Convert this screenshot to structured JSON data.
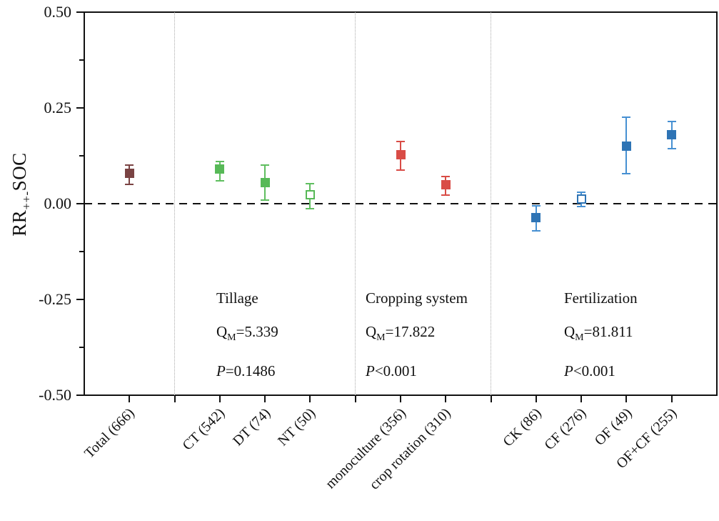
{
  "figure": {
    "y_axis": {
      "label_main": "RR",
      "label_sub": "++-",
      "label_rest": "SOC",
      "major_ticks": [
        {
          "value": 0.5,
          "label": "0.50"
        },
        {
          "value": 0.25,
          "label": "0.25"
        },
        {
          "value": 0.0,
          "label": "0.00"
        },
        {
          "value": -0.25,
          "label": "-0.25"
        },
        {
          "value": -0.5,
          "label": "-0.50"
        }
      ],
      "minor_ticks": [
        0.375,
        0.125,
        -0.125,
        -0.375
      ]
    }
  },
  "chart_data": {
    "type": "scatter",
    "title": "",
    "ylabel": "RR++-SOC",
    "xlabel": "",
    "ylim": [
      -0.5,
      0.5
    ],
    "grid": false,
    "zero_line": 0.0,
    "slot_count": 14,
    "separator_slots": [
      2,
      6,
      9
    ],
    "tick_slots": [
      1,
      2,
      3,
      4,
      5,
      6,
      7,
      8,
      9,
      10,
      11,
      12,
      13
    ],
    "points": [
      {
        "label": "Total (666)",
        "n": 666,
        "slot": 1,
        "value": 0.08,
        "ci_low": 0.05,
        "ci_high": 0.1,
        "style": "filled",
        "color": "#7a4343",
        "bar_color": "#7a4343"
      },
      {
        "label": "CT (542)",
        "n": 542,
        "slot": 3,
        "value": 0.09,
        "ci_low": 0.06,
        "ci_high": 0.11,
        "style": "filled",
        "color": "#57b957",
        "bar_color": "#5fbe5f"
      },
      {
        "label": "DT (74)",
        "n": 74,
        "slot": 4,
        "value": 0.055,
        "ci_low": 0.01,
        "ci_high": 0.1,
        "style": "filled",
        "color": "#57b957",
        "bar_color": "#5fbe5f"
      },
      {
        "label": "NT (50)",
        "n": 50,
        "slot": 5,
        "value": 0.024,
        "ci_low": -0.013,
        "ci_high": 0.052,
        "style": "open",
        "color": "#57b957",
        "bar_color": "#5fbe5f"
      },
      {
        "label": "monoculture (356)",
        "n": 356,
        "slot": 7,
        "value": 0.127,
        "ci_low": 0.088,
        "ci_high": 0.162,
        "style": "filled",
        "color": "#d94c46",
        "bar_color": "#d94c46"
      },
      {
        "label": "crop rotation (310)",
        "n": 310,
        "slot": 8,
        "value": 0.05,
        "ci_low": 0.022,
        "ci_high": 0.071,
        "style": "filled",
        "color": "#d94c46",
        "bar_color": "#d94c46"
      },
      {
        "label": "CK (86)",
        "n": 86,
        "slot": 10,
        "value": -0.037,
        "ci_low": -0.071,
        "ci_high": -0.005,
        "style": "filled",
        "color": "#2e74b5",
        "bar_color": "#4690d2"
      },
      {
        "label": "CF (276)",
        "n": 276,
        "slot": 11,
        "value": 0.013,
        "ci_low": -0.008,
        "ci_high": 0.03,
        "style": "open",
        "color": "#2e74b5",
        "bar_color": "#4690d2"
      },
      {
        "label": "OF (49)",
        "n": 49,
        "slot": 12,
        "value": 0.15,
        "ci_low": 0.078,
        "ci_high": 0.225,
        "style": "filled",
        "color": "#2e74b5",
        "bar_color": "#4690d2"
      },
      {
        "label": "OF+CF (255)",
        "n": 255,
        "slot": 13,
        "value": 0.18,
        "ci_low": 0.144,
        "ci_high": 0.215,
        "style": "filled",
        "color": "#2e74b5",
        "bar_color": "#4690d2"
      }
    ],
    "groups": [
      {
        "name": "Tillage",
        "qm_symbol": "Q",
        "qm_sub": "M",
        "qm_value": "=5.339",
        "p_symbol": "P",
        "p_value": "=0.1486"
      },
      {
        "name": "Cropping system",
        "qm_symbol": "Q",
        "qm_sub": "M",
        "qm_value": "=17.822",
        "p_symbol": "P",
        "p_value": "<0.001"
      },
      {
        "name": "Fertilization",
        "qm_symbol": "Q",
        "qm_sub": "M",
        "qm_value": "=81.811",
        "p_symbol": "P",
        "p_value": "<0.001"
      }
    ],
    "colors": {
      "total": "#7a4343",
      "tillage": "#57b957",
      "cropping_system": "#d94c46",
      "fertilization": "#2e74b5",
      "axis": "#111111",
      "separator": "#ababab"
    },
    "legend_position": "none"
  }
}
